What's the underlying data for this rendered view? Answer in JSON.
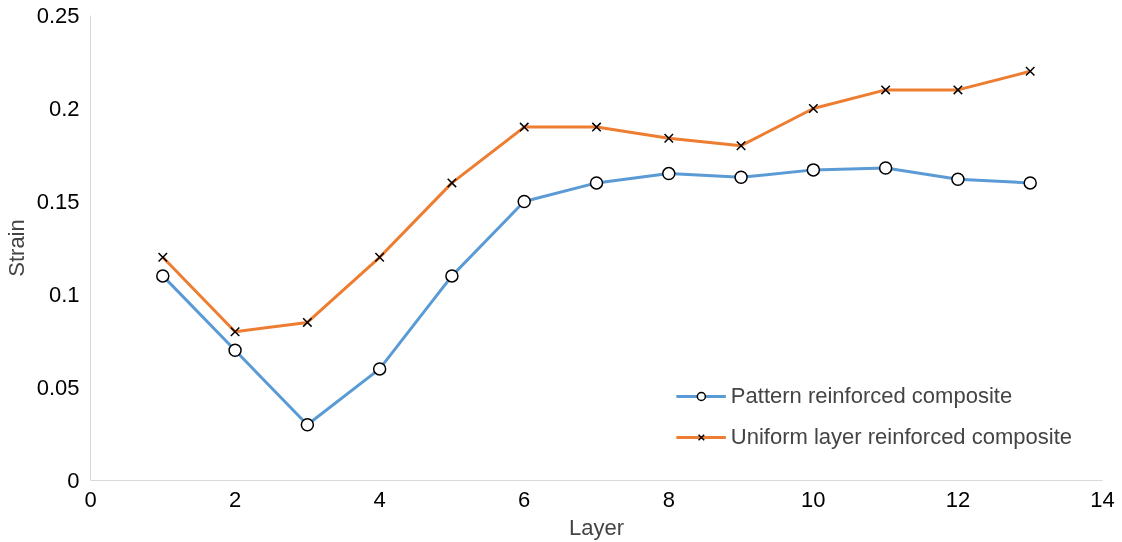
{
  "chart_data": {
    "type": "line",
    "xlabel": "Layer",
    "ylabel": "Strain",
    "x": [
      1,
      2,
      3,
      4,
      5,
      6,
      7,
      8,
      9,
      10,
      11,
      12,
      13
    ],
    "series": [
      {
        "name": "Pattern reinforced composite",
        "color": "#5b9bd5",
        "marker": "circle",
        "values": [
          0.11,
          0.07,
          0.03,
          0.06,
          0.11,
          0.15,
          0.16,
          0.165,
          0.163,
          0.167,
          0.168,
          0.162,
          0.16
        ]
      },
      {
        "name": "Uniform layer reinforced composite",
        "color": "#ed7d31",
        "marker": "cross",
        "values": [
          0.12,
          0.08,
          0.085,
          0.12,
          0.16,
          0.19,
          0.19,
          0.184,
          0.18,
          0.2,
          0.21,
          0.21,
          0.22
        ]
      }
    ],
    "xlim": [
      0,
      14
    ],
    "xticks": [
      0,
      2,
      4,
      6,
      8,
      10,
      12,
      14
    ],
    "ylim": [
      0,
      0.25
    ],
    "yticks": [
      0,
      0.05,
      0.1,
      0.15,
      0.2,
      0.25
    ],
    "grid": false,
    "legend": "bottom right",
    "line_style": "solid"
  }
}
